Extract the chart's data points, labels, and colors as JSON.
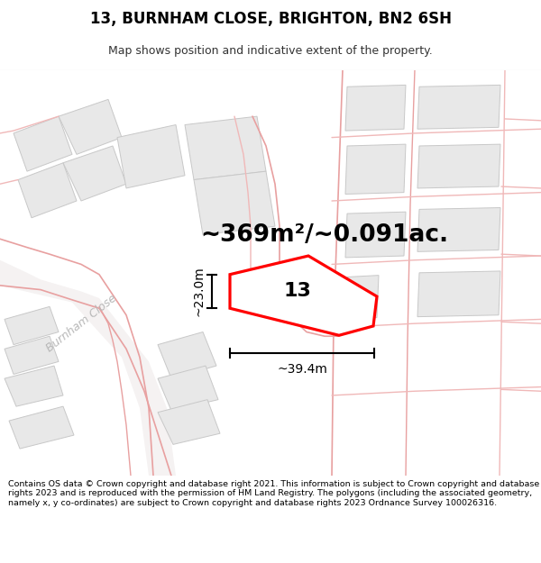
{
  "title_line1": "13, BURNHAM CLOSE, BRIGHTON, BN2 6SH",
  "title_line2": "Map shows position and indicative extent of the property.",
  "area_text": "~369m²/~0.091ac.",
  "width_label": "~39.4m",
  "height_label": "~23.0m",
  "property_number": "13",
  "road_label": "Burnham Close",
  "footer_text": "Contains OS data © Crown copyright and database right 2021. This information is subject to Crown copyright and database rights 2023 and is reproduced with the permission of HM Land Registry. The polygons (including the associated geometry, namely x, y co-ordinates) are subject to Crown copyright and database rights 2023 Ordnance Survey 100026316.",
  "map_bg": "#ffffff",
  "building_fill": "#e8e8e8",
  "building_edge": "#c8c8c8",
  "road_fill": "#f0f0f0",
  "pink": "#f0b8b8",
  "pink2": "#e8a0a0",
  "property_fill": "#ffffff",
  "property_edge": "#ff0000",
  "dim_color": "#000000",
  "road_label_color": "#b8b8b8",
  "title_fontsize": 12,
  "subtitle_fontsize": 9,
  "area_fontsize": 19,
  "property_num_fontsize": 16,
  "dim_fontsize": 10,
  "road_label_fontsize": 9,
  "footer_fontsize": 6.8
}
